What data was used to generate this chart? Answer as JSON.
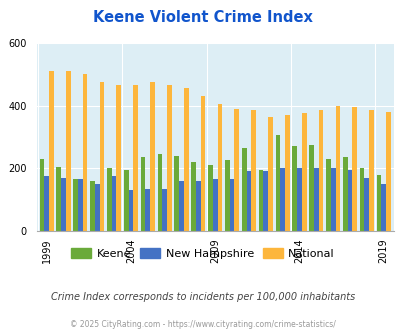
{
  "title": "Keene Violent Crime Index",
  "years": [
    1999,
    2000,
    2001,
    2002,
    2003,
    2004,
    2005,
    2006,
    2007,
    2008,
    2009,
    2010,
    2011,
    2012,
    2013,
    2014,
    2015,
    2016,
    2017,
    2018,
    2019
  ],
  "keene": [
    230,
    205,
    165,
    160,
    200,
    195,
    235,
    245,
    240,
    220,
    210,
    225,
    265,
    195,
    305,
    270,
    275,
    230,
    235,
    200,
    180
  ],
  "new_hampshire": [
    175,
    170,
    165,
    150,
    175,
    130,
    135,
    135,
    160,
    160,
    165,
    165,
    190,
    190,
    200,
    200,
    200,
    200,
    195,
    170,
    150
  ],
  "national": [
    510,
    510,
    500,
    475,
    465,
    465,
    475,
    465,
    455,
    430,
    405,
    390,
    385,
    365,
    370,
    375,
    385,
    400,
    395,
    385,
    380
  ],
  "keene_color": "#6aaa3a",
  "nh_color": "#4472c4",
  "national_color": "#fdb63c",
  "bg_color": "#ddeef5",
  "ylim": [
    0,
    600
  ],
  "yticks": [
    0,
    200,
    400,
    600
  ],
  "tick_years": [
    1999,
    2004,
    2009,
    2014,
    2019
  ],
  "subtitle": "Crime Index corresponds to incidents per 100,000 inhabitants",
  "footer": "© 2025 CityRating.com - https://www.cityrating.com/crime-statistics/",
  "title_color": "#1155cc",
  "subtitle_color": "#444444",
  "footer_color": "#999999",
  "legend_labels": [
    "Keene",
    "New Hampshire",
    "National"
  ]
}
